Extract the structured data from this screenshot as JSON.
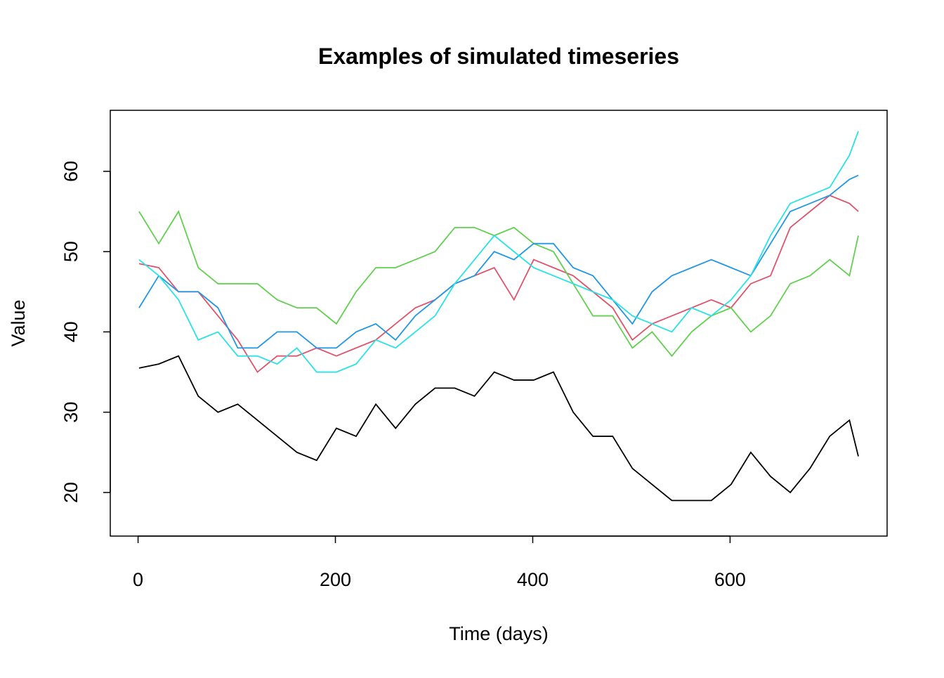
{
  "chart_data": {
    "type": "line",
    "title": "Examples of simulated timeseries",
    "x_label": "Time (days)",
    "y_label": "Value",
    "x": [
      1,
      21,
      41,
      61,
      81,
      101,
      121,
      141,
      161,
      181,
      201,
      221,
      241,
      261,
      281,
      301,
      321,
      341,
      361,
      381,
      401,
      421,
      441,
      461,
      481,
      501,
      521,
      541,
      561,
      581,
      601,
      621,
      641,
      661,
      681,
      701,
      721,
      730
    ],
    "series": [
      {
        "color": "#000000",
        "values": [
          35.5,
          36,
          37,
          32,
          30,
          31,
          29,
          27,
          25,
          24,
          28,
          27,
          31,
          28,
          31,
          33,
          33,
          32,
          35,
          34,
          34,
          35,
          30,
          27,
          27,
          23,
          21,
          19,
          19,
          19,
          21,
          25,
          22,
          20,
          23,
          27,
          29,
          24.5
        ]
      },
      {
        "color": "#DF536B",
        "values": [
          48.5,
          48,
          45,
          45,
          42,
          39,
          35,
          37,
          37,
          38,
          37,
          38,
          39,
          41,
          43,
          44,
          46,
          47,
          48,
          44,
          49,
          48,
          47,
          45,
          43,
          39,
          41,
          42,
          43,
          44,
          43,
          46,
          47,
          53,
          55,
          57,
          56,
          55
        ]
      },
      {
        "color": "#61D04F",
        "values": [
          55,
          51,
          55,
          48,
          46,
          46,
          46,
          44,
          43,
          43,
          41,
          45,
          48,
          48,
          49,
          50,
          53,
          53,
          52,
          53,
          51,
          50,
          46,
          42,
          42,
          38,
          40,
          37,
          40,
          42,
          43,
          40,
          42,
          46,
          47,
          49,
          47,
          52
        ]
      },
      {
        "color": "#2297E6",
        "values": [
          43,
          47,
          45,
          45,
          43,
          38,
          38,
          40,
          40,
          38,
          38,
          40,
          41,
          39,
          42,
          44,
          46,
          47,
          50,
          49,
          51,
          51,
          48,
          47,
          44,
          41,
          45,
          47,
          48,
          49,
          48,
          47,
          51,
          55,
          56,
          57,
          59,
          59.5
        ]
      },
      {
        "color": "#28E2E5",
        "values": [
          49,
          47,
          44,
          39,
          40,
          37,
          37,
          36,
          38,
          35,
          35,
          36,
          39,
          38,
          40,
          42,
          46,
          49,
          52,
          50,
          48,
          47,
          46,
          45,
          44,
          42,
          41,
          40,
          43,
          42,
          44,
          47,
          52,
          56,
          57,
          58,
          62,
          65
        ]
      }
    ],
    "xlim": [
      -28.16,
      759.16
    ],
    "ylim": [
      14.57,
      67.6
    ],
    "xticks": [
      0,
      200,
      400,
      600
    ],
    "yticks": [
      20,
      30,
      40,
      50,
      60
    ]
  }
}
